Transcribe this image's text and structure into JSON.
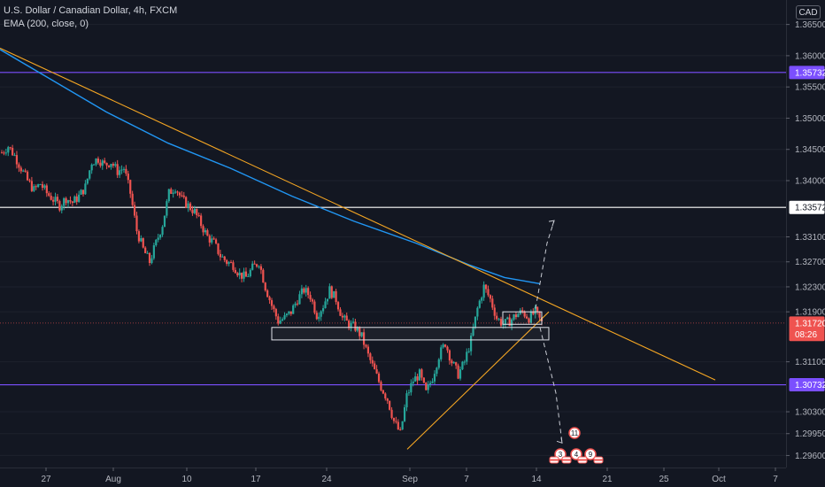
{
  "header": {
    "title_line": "U.S. Dollar / Canadian Dollar, 4h, FXCM",
    "indicator_line": "EMA (200, close, 0)",
    "currency": "CAD"
  },
  "colors": {
    "background": "#131722",
    "grid": "#1e222d",
    "up_candle": "#26a69a",
    "down_candle": "#ef5350",
    "ema_line": "#2196f3",
    "trendline": "#f5a623",
    "purple_level": "#7b4fff",
    "white_level": "#ffffff",
    "last_price": "#ef5350"
  },
  "chart_data": {
    "type": "candlestick",
    "symbol": "USDCAD",
    "timeframe": "4h",
    "x_ticks": [
      "27",
      "Aug",
      "10",
      "17",
      "24",
      "Sep",
      "7",
      "14",
      "21",
      "25",
      "Oct",
      "7"
    ],
    "y_ticks": [
      "1.36500",
      "1.36000",
      "1.35500",
      "1.35000",
      "1.34500",
      "1.34000",
      "1.33100",
      "1.32700",
      "1.32300",
      "1.31900",
      "1.31100",
      "1.30300",
      "1.29950",
      "1.29600"
    ],
    "ylim": [
      1.2945,
      1.3675
    ],
    "price_labels": [
      {
        "label": "1.35732",
        "value": 1.35732,
        "kind": "purple"
      },
      {
        "label": "1.33572",
        "value": 1.33572,
        "kind": "white"
      },
      {
        "label": "1.31720",
        "value": 1.3172,
        "kind": "last"
      },
      {
        "label": "08:26",
        "value": 1.3158,
        "kind": "countdown"
      },
      {
        "label": "1.30732",
        "value": 1.30732,
        "kind": "purple"
      }
    ],
    "horizontal_levels": [
      {
        "value": 1.35732,
        "kind": "purple"
      },
      {
        "value": 1.33572,
        "kind": "white"
      },
      {
        "value": 1.30732,
        "kind": "purple"
      },
      {
        "value": 1.3172,
        "kind": "last"
      }
    ],
    "close_path": [
      1.3445,
      1.3455,
      1.344,
      1.342,
      1.34,
      1.3385,
      1.3395,
      1.338,
      1.337,
      1.336,
      1.3372,
      1.3365,
      1.3375,
      1.339,
      1.343,
      1.3435,
      1.3425,
      1.343,
      1.3415,
      1.342,
      1.338,
      1.332,
      1.329,
      1.327,
      1.33,
      1.333,
      1.338,
      1.339,
      1.337,
      1.336,
      1.335,
      1.333,
      1.331,
      1.33,
      1.328,
      1.327,
      1.3265,
      1.325,
      1.3245,
      1.326,
      1.327,
      1.323,
      1.32,
      1.3175,
      1.318,
      1.319,
      1.321,
      1.3225,
      1.3215,
      1.3185,
      1.32,
      1.3225,
      1.321,
      1.318,
      1.317,
      1.3165,
      1.315,
      1.312,
      1.3095,
      1.307,
      1.305,
      1.3015,
      1.2995,
      1.3055,
      1.308,
      1.309,
      1.306,
      1.3085,
      1.312,
      1.314,
      1.311,
      1.309,
      1.311,
      1.3145,
      1.3195,
      1.323,
      1.321,
      1.318,
      1.317,
      1.3175,
      1.3185,
      1.319,
      1.318,
      1.319,
      1.3172
    ],
    "ema_200": [
      [
        0,
        1.361
      ],
      [
        60,
        1.356
      ],
      [
        120,
        1.351
      ],
      [
        190,
        1.346
      ],
      [
        260,
        1.342
      ],
      [
        330,
        1.3375
      ],
      [
        400,
        1.3335
      ],
      [
        470,
        1.33
      ],
      [
        530,
        1.3265
      ],
      [
        570,
        1.3245
      ],
      [
        610,
        1.3235
      ]
    ],
    "drawings": {
      "descending_trendline": [
        [
          0,
          1.3612
        ],
        [
          808,
          1.3081
        ]
      ],
      "ascending_trendline": [
        [
          460,
          1.297
        ],
        [
          620,
          1.319
        ]
      ],
      "support_box": {
        "x1": 307,
        "x2": 620,
        "y_top": 1.3165,
        "y_bot": 1.3145
      },
      "consolidation_box": {
        "x1": 568,
        "x2": 612,
        "y_top": 1.319,
        "y_bot": 1.317
      },
      "up_projection": [
        [
          605,
          1.3195
        ],
        [
          618,
          1.33
        ],
        [
          626,
          1.3336
        ]
      ],
      "down_projection": [
        [
          610,
          1.3165
        ],
        [
          628,
          1.306
        ],
        [
          635,
          1.298
        ]
      ]
    },
    "event_markers": [
      {
        "label": "3"
      },
      {
        "label": "4"
      },
      {
        "label": "9"
      },
      {
        "label": "11"
      }
    ],
    "grid": false,
    "legend": "top-left"
  }
}
